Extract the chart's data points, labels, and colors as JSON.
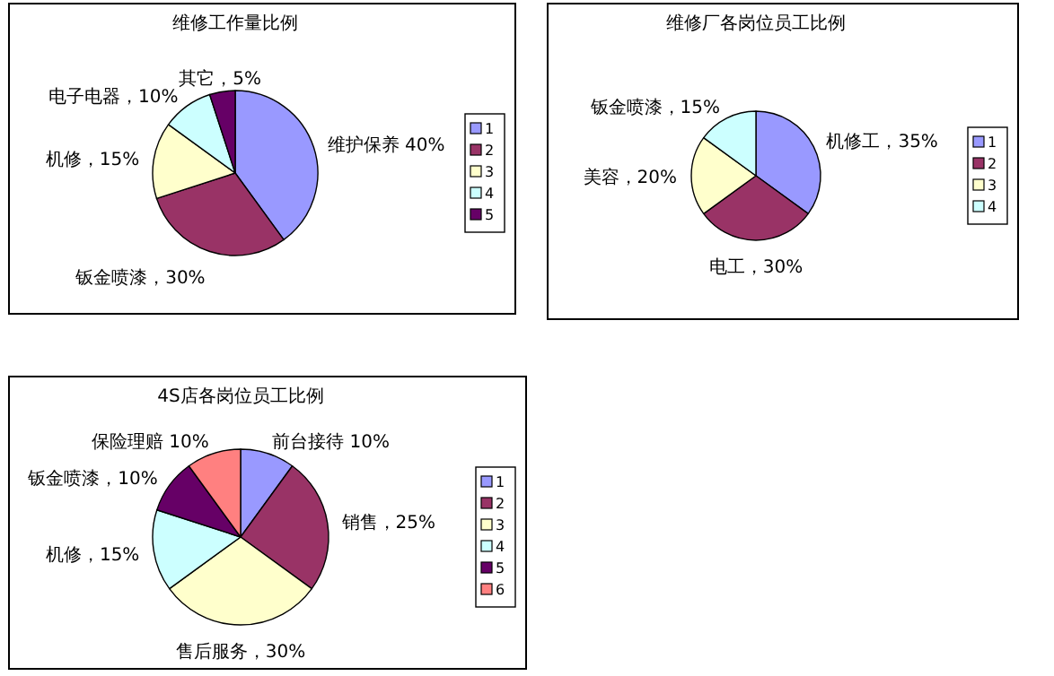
{
  "chart_data": [
    {
      "type": "pie",
      "title": "维修工作量比例",
      "categories": [
        "1",
        "2",
        "3",
        "4",
        "5"
      ],
      "values": [
        40,
        30,
        15,
        10,
        5
      ],
      "colors": [
        "#9999ff",
        "#993366",
        "#ffffcc",
        "#ccffff",
        "#660066"
      ],
      "value_labels": [
        "维护保养  40%",
        "钣金喷漆，30%",
        "机修，15%",
        "电子电器，10%",
        "其它，5%"
      ],
      "legend": "right"
    },
    {
      "type": "pie",
      "title": "维修厂各岗位员工比例",
      "categories": [
        "1",
        "2",
        "3",
        "4"
      ],
      "values": [
        35,
        30,
        20,
        15
      ],
      "colors": [
        "#9999ff",
        "#993366",
        "#ffffcc",
        "#ccffff"
      ],
      "value_labels": [
        "机修工，35%",
        "电工，30%",
        "美容，20%",
        "钣金喷漆，15%"
      ],
      "legend": "right"
    },
    {
      "type": "pie",
      "title": "4S店各岗位员工比例",
      "categories": [
        "1",
        "2",
        "3",
        "4",
        "5",
        "6"
      ],
      "values": [
        10,
        25,
        30,
        15,
        10,
        10
      ],
      "colors": [
        "#9999ff",
        "#993366",
        "#ffffcc",
        "#ccffff",
        "#660066",
        "#ff8080"
      ],
      "value_labels": [
        "前台接待  10%",
        "销售，25%",
        "售后服务，30%",
        "机修，15%",
        "钣金喷漆，10%",
        "保险理赔  10%"
      ],
      "legend": "right"
    }
  ]
}
